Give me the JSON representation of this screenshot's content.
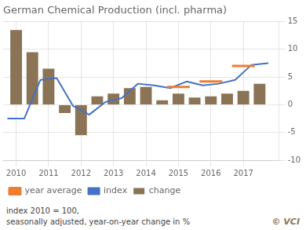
{
  "chart_data": {
    "type": "bar",
    "title": "German Chemical Production (incl. pharma)",
    "annotations": [
      "index 2010 = 100,",
      "seasonally adjusted, year-on-year change in %",
      "© VCI"
    ],
    "series": [
      {
        "name": "change",
        "type": "bar",
        "color": "#8B7355",
        "x": [
          2010.0,
          2010.5,
          2011.0,
          2011.5,
          2012.0,
          2012.5,
          2013.0,
          2013.5,
          2014.0,
          2014.5,
          2015.0,
          2015.5,
          2016.0,
          2016.5,
          2017.0,
          2017.5
        ],
        "values": [
          13.5,
          9.5,
          6.5,
          -1.5,
          -5.5,
          1.5,
          2.0,
          3.0,
          3.2,
          0.8,
          2.0,
          1.3,
          1.5,
          2.0,
          2.5,
          3.8
        ]
      },
      {
        "name": "index",
        "type": "line",
        "color": "#4472C4",
        "x": [
          2009.75,
          2010.25,
          2010.75,
          2011.25,
          2011.75,
          2012.25,
          2012.75,
          2013.25,
          2013.75,
          2014.25,
          2014.75,
          2015.25,
          2015.75,
          2016.25,
          2016.75,
          2017.25,
          2017.75
        ],
        "values": [
          -2.5,
          -2.5,
          4.5,
          4.8,
          -0.2,
          -1.8,
          0.5,
          1.2,
          3.8,
          3.5,
          3.0,
          4.2,
          3.5,
          3.8,
          4.5,
          7.2,
          7.5
        ]
      },
      {
        "name": "year average",
        "type": "line",
        "color": "#ED7D31",
        "segments": [
          {
            "x": [
              2014.65,
              2015.35
            ],
            "values": [
              3.2,
              3.2
            ]
          },
          {
            "x": [
              2015.65,
              2016.35
            ],
            "values": [
              4.2,
              4.2
            ]
          },
          {
            "x": [
              2016.65,
              2017.35
            ],
            "values": [
              7.0,
              7.0
            ]
          }
        ]
      }
    ],
    "xlim": [
      2009.6,
      2018.1
    ],
    "xticks": [
      2010,
      2011,
      2012,
      2013,
      2014,
      2015,
      2016,
      2017
    ],
    "ylim": [
      -10,
      15
    ],
    "yticks": [
      -10,
      -5,
      0,
      5,
      10,
      15
    ],
    "grid": true,
    "legend": "bottom"
  }
}
